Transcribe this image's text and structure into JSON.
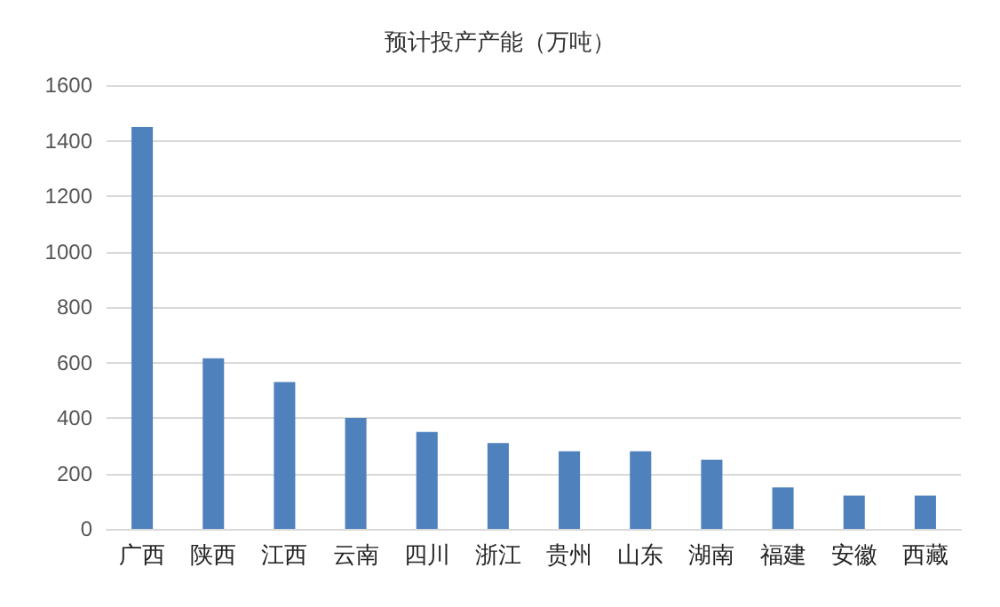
{
  "chart_data": {
    "type": "bar",
    "title": "预计投产产能（万吨）",
    "categories": [
      "广西",
      "陕西",
      "江西",
      "云南",
      "四川",
      "浙江",
      "贵州",
      "山东",
      "湖南",
      "福建",
      "安徽",
      "西藏"
    ],
    "values": [
      1450,
      615,
      530,
      400,
      350,
      310,
      280,
      280,
      250,
      150,
      120,
      120
    ],
    "color": "#4f81bd",
    "ylim": [
      0,
      1600
    ],
    "yticks": [
      0,
      200,
      400,
      600,
      800,
      1000,
      1200,
      1400,
      1600
    ],
    "grid": "y"
  }
}
